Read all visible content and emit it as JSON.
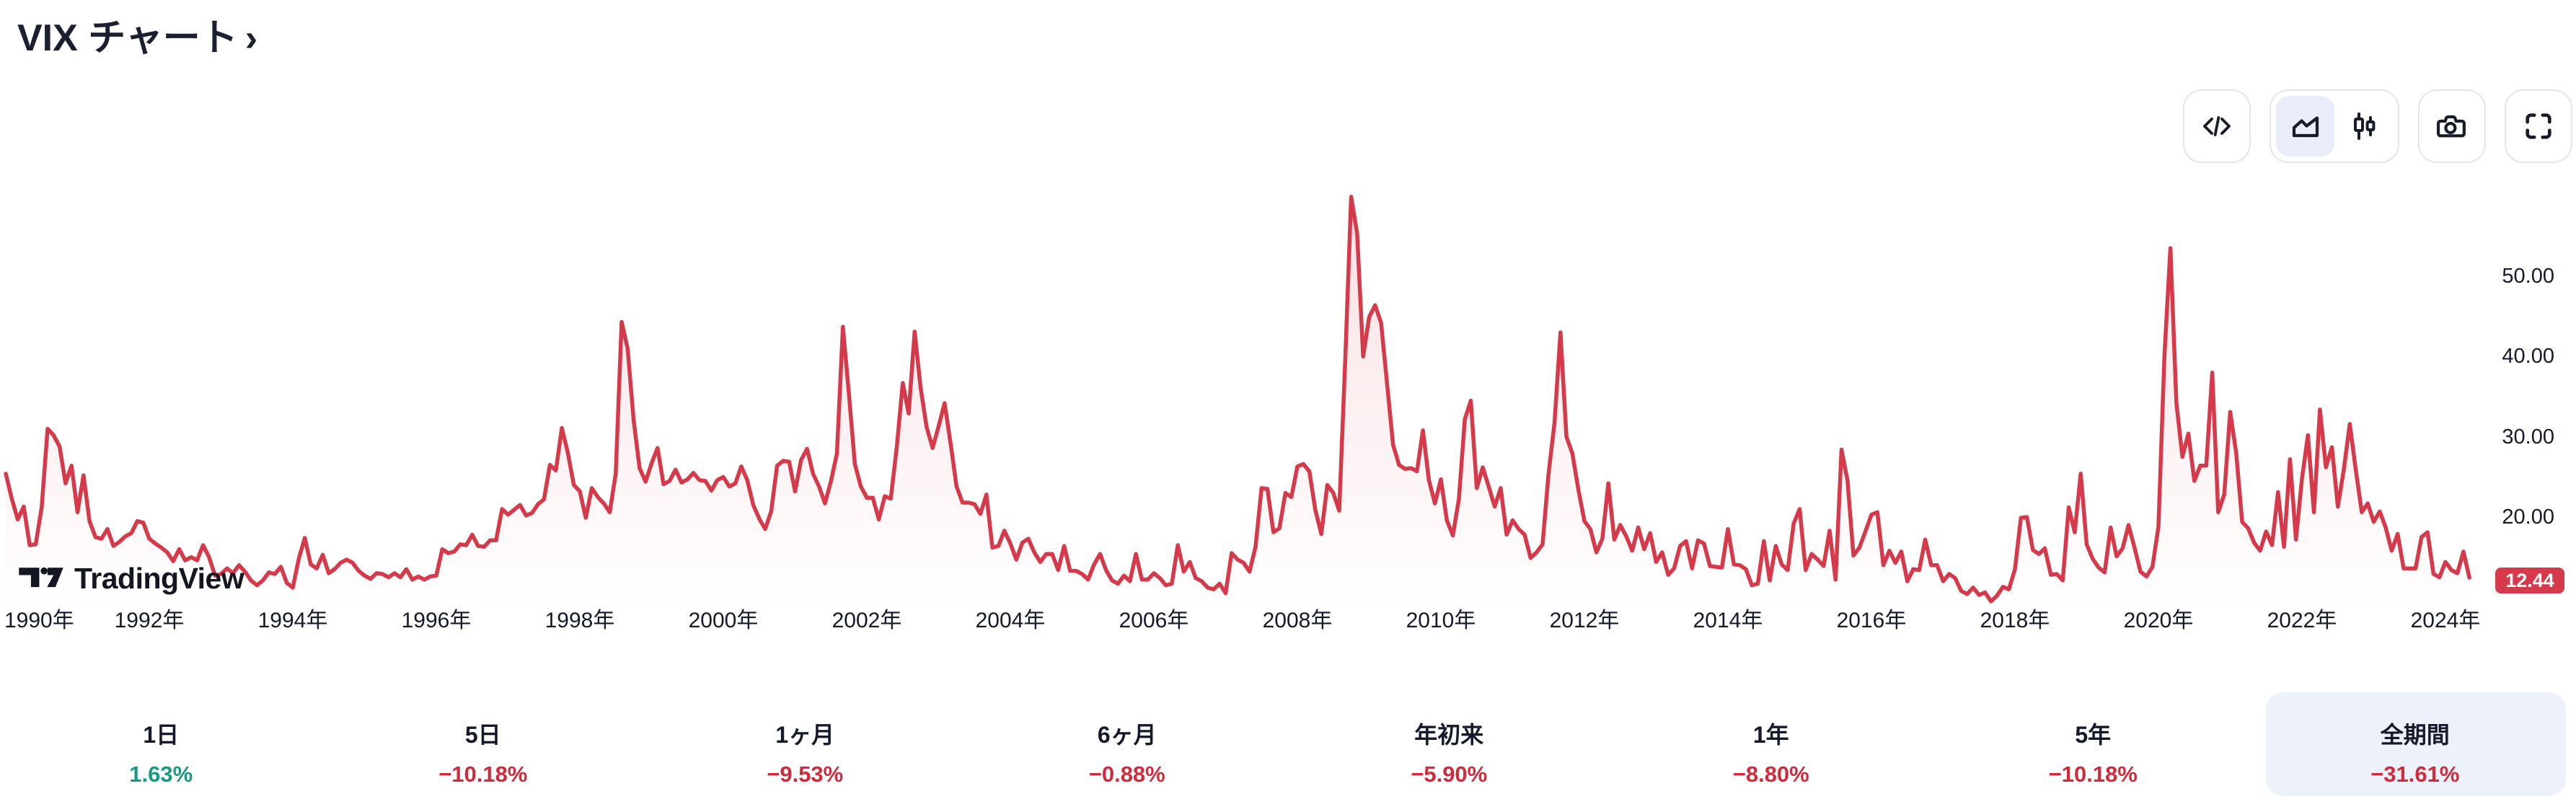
{
  "title": {
    "text": "VIX チャート",
    "chevron": "›"
  },
  "colors": {
    "accent_red": "#d5394a",
    "down": "#d02b3d",
    "up": "#189981",
    "text_dark": "#14192b",
    "border": "#e2e5ec",
    "selected_pill": "#e9edf9",
    "selected_card": "#edf1f9",
    "badge_text": "#ffffff"
  },
  "toolbar": {
    "buttons": [
      {
        "name": "embed-code",
        "icon": "code-icon"
      },
      {
        "name": "chart-type-area",
        "icon": "area-chart-icon",
        "selected": true
      },
      {
        "name": "chart-type-candles",
        "icon": "candles-icon",
        "selected": false
      },
      {
        "name": "snapshot",
        "icon": "camera-icon"
      },
      {
        "name": "fullscreen",
        "icon": "fullscreen-icon"
      }
    ]
  },
  "chart": {
    "y_axis_labels": [
      "50.00",
      "40.00",
      "30.00",
      "20.00"
    ],
    "x_axis_labels": [
      "1990年",
      "1992年",
      "1994年",
      "1996年",
      "1998年",
      "2000年",
      "2002年",
      "2004年",
      "2006年",
      "2008年",
      "2010年",
      "2012年",
      "2014年",
      "2016年",
      "2018年",
      "2020年",
      "2022年",
      "2024年"
    ],
    "last_price_label": "12.44",
    "watermark": "TradingView"
  },
  "chart_data": {
    "type": "area",
    "title": "VIX",
    "interval": "1M",
    "x_start_year": 1990,
    "x_end_year": 2024.42,
    "y_ticks": [
      20,
      30,
      40,
      50
    ],
    "x_tick_years": [
      1990,
      1992,
      1994,
      1996,
      1998,
      2000,
      2002,
      2004,
      2006,
      2008,
      2010,
      2012,
      2014,
      2016,
      2018,
      2020,
      2022,
      2024
    ],
    "ylim": [
      9,
      62
    ],
    "grid": false,
    "legend": "none",
    "line_color": "#d5394a",
    "area_fill": "vertical fade of line color to transparent",
    "last_value": 12.44,
    "values": [
      25.4,
      22.3,
      19.7,
      21.3,
      16.5,
      16.6,
      21.2,
      31.0,
      30.2,
      28.8,
      24.2,
      26.4,
      20.6,
      25.2,
      19.5,
      17.5,
      17.3,
      18.5,
      16.4,
      16.9,
      17.6,
      18.0,
      19.5,
      19.3,
      17.3,
      16.7,
      16.2,
      15.6,
      14.5,
      16.0,
      14.6,
      15.0,
      14.6,
      16.5,
      15.0,
      12.7,
      12.9,
      13.6,
      13.0,
      14.0,
      13.2,
      12.1,
      11.5,
      12.1,
      13.1,
      12.9,
      13.8,
      11.8,
      11.2,
      14.8,
      17.4,
      14.1,
      13.6,
      15.3,
      13.0,
      13.5,
      14.3,
      14.7,
      14.3,
      13.3,
      12.7,
      12.3,
      13.0,
      12.9,
      12.5,
      13.0,
      12.5,
      13.5,
      12.2,
      12.6,
      12.2,
      12.6,
      12.7,
      16.0,
      15.5,
      15.7,
      16.6,
      16.5,
      17.8,
      16.4,
      16.3,
      17.1,
      17.1,
      21.0,
      20.3,
      20.9,
      21.5,
      20.2,
      20.5,
      21.6,
      22.2,
      26.5,
      25.8,
      31.1,
      28.0,
      24.0,
      23.2,
      19.9,
      23.6,
      22.5,
      21.7,
      20.6,
      25.4,
      44.3,
      41.0,
      32.1,
      26.1,
      24.4,
      26.7,
      28.6,
      24.1,
      24.5,
      25.9,
      24.3,
      24.7,
      25.5,
      24.6,
      24.5,
      23.3,
      24.6,
      25.0,
      23.8,
      24.2,
      26.3,
      24.6,
      21.5,
      19.8,
      18.5,
      20.7,
      26.4,
      27.0,
      26.9,
      23.2,
      27.1,
      28.5,
      25.4,
      23.8,
      21.7,
      24.5,
      27.9,
      43.7,
      35.4,
      26.6,
      23.8,
      22.4,
      22.4,
      19.7,
      22.6,
      22.3,
      28.7,
      36.7,
      32.9,
      43.1,
      36.1,
      31.2,
      28.6,
      31.3,
      34.2,
      29.2,
      23.8,
      21.8,
      21.8,
      21.6,
      20.4,
      22.8,
      16.2,
      16.4,
      18.3,
      16.7,
      14.7,
      16.8,
      17.3,
      15.6,
      14.4,
      15.4,
      15.4,
      13.4,
      16.4,
      13.3,
      13.3,
      12.9,
      12.2,
      14.1,
      15.4,
      13.4,
      12.1,
      11.7,
      12.7,
      12.0,
      15.4,
      12.2,
      12.2,
      13.0,
      12.4,
      11.5,
      11.7,
      16.5,
      13.2,
      14.4,
      12.4,
      12.0,
      11.2,
      11.0,
      11.7,
      10.5,
      15.5,
      14.7,
      14.3,
      13.2,
      16.3,
      23.6,
      23.5,
      18.1,
      18.6,
      23.0,
      22.5,
      26.3,
      26.6,
      25.7,
      20.9,
      17.9,
      24.0,
      23.0,
      20.8,
      39.4,
      59.9,
      55.3,
      40.0,
      44.9,
      46.4,
      44.2,
      36.6,
      29.0,
      26.5,
      26.0,
      26.1,
      25.7,
      30.8,
      24.6,
      21.7,
      24.7,
      19.6,
      17.7,
      22.2,
      32.2,
      34.5,
      23.6,
      26.2,
      23.8,
      21.3,
      23.6,
      17.8,
      19.6,
      18.5,
      17.8,
      14.9,
      15.6,
      16.6,
      25.4,
      31.7,
      43.0,
      30.0,
      27.9,
      23.4,
      19.5,
      18.5,
      15.6,
      17.3,
      24.2,
      17.2,
      19.0,
      17.6,
      15.8,
      18.7,
      16.0,
      18.0,
      14.4,
      15.6,
      12.8,
      13.6,
      16.4,
      17.0,
      13.6,
      17.1,
      16.7,
      13.9,
      13.8,
      13.7,
      18.5,
      14.1,
      14.0,
      13.5,
      11.5,
      11.7,
      17.0,
      12.1,
      16.4,
      14.1,
      13.4,
      19.2,
      21.0,
      13.4,
      15.4,
      14.7,
      13.9,
      18.3,
      12.2,
      28.4,
      24.6,
      15.2,
      16.2,
      18.2,
      20.3,
      20.6,
      14.0,
      15.8,
      14.3,
      15.7,
      12.0,
      13.5,
      13.4,
      17.2,
      14.0,
      14.0,
      12.0,
      12.9,
      12.4,
      10.8,
      10.4,
      11.2,
      10.3,
      10.6,
      9.5,
      10.2,
      11.3,
      11.0,
      13.5,
      19.9,
      20.0,
      15.9,
      15.4,
      16.1,
      12.8,
      12.9,
      12.1,
      21.2,
      18.1,
      25.4,
      16.6,
      14.8,
      13.7,
      13.1,
      18.7,
      15.1,
      16.1,
      19.0,
      16.2,
      13.2,
      12.6,
      13.8,
      18.8,
      40.1,
      53.5,
      34.2,
      27.5,
      30.4,
      24.5,
      26.4,
      26.4,
      38.0,
      20.6,
      22.8,
      33.1,
      28.0,
      19.4,
      18.6,
      16.8,
      15.8,
      18.2,
      16.5,
      23.1,
      16.3,
      27.2,
      17.2,
      24.8,
      30.2,
      20.6,
      33.4,
      26.2,
      28.7,
      21.3,
      25.9,
      31.6,
      25.9,
      20.6,
      21.7,
      19.4,
      20.7,
      18.7,
      15.8,
      17.9,
      13.6,
      13.6,
      13.6,
      17.5,
      18.1,
      12.9,
      12.5,
      14.4,
      13.4,
      13.0,
      15.7,
      12.44
    ]
  },
  "periods": [
    {
      "label": "1日",
      "change": "1.63%",
      "direction": "up",
      "selected": false
    },
    {
      "label": "5日",
      "change": "−10.18%",
      "direction": "down",
      "selected": false
    },
    {
      "label": "1ヶ月",
      "change": "−9.53%",
      "direction": "down",
      "selected": false
    },
    {
      "label": "6ヶ月",
      "change": "−0.88%",
      "direction": "down",
      "selected": false
    },
    {
      "label": "年初来",
      "change": "−5.90%",
      "direction": "down",
      "selected": false
    },
    {
      "label": "1年",
      "change": "−8.80%",
      "direction": "down",
      "selected": false
    },
    {
      "label": "5年",
      "change": "−10.18%",
      "direction": "down",
      "selected": false
    },
    {
      "label": "全期間",
      "change": "−31.61%",
      "direction": "down",
      "selected": true
    }
  ]
}
